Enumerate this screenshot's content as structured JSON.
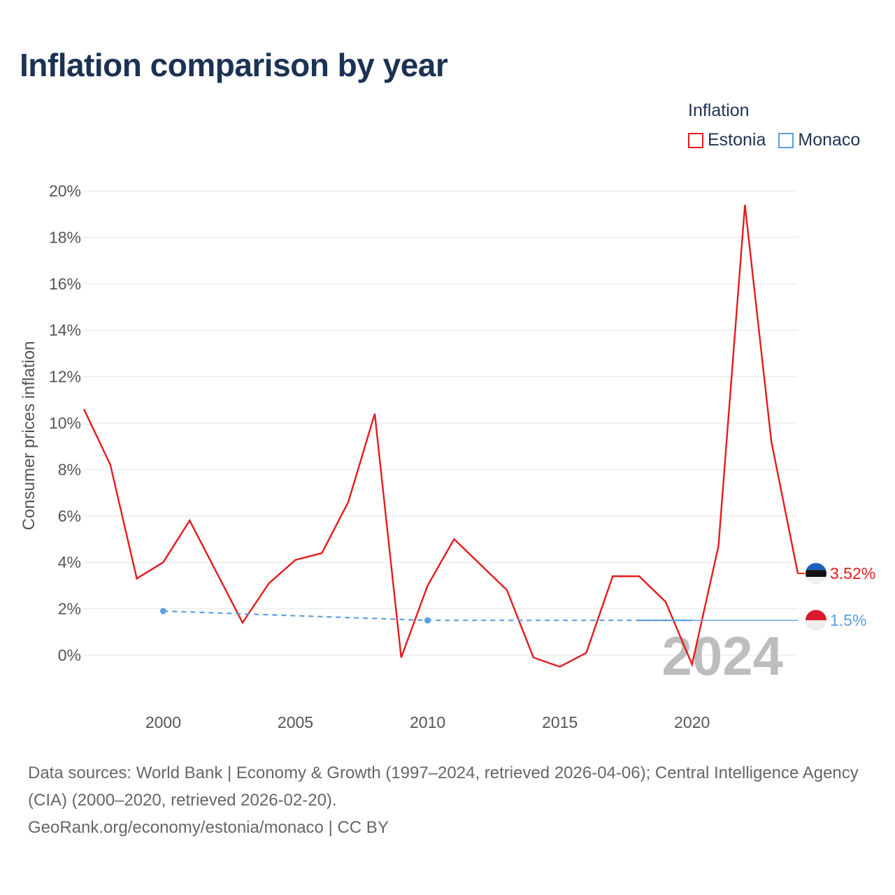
{
  "title": "Inflation comparison by year",
  "legend": {
    "title": "Inflation",
    "items": [
      {
        "label": "Estonia",
        "color": "#e41a1c"
      },
      {
        "label": "Monaco",
        "color": "#5b9fe0"
      }
    ]
  },
  "watermark_year": "2024",
  "sources": {
    "line1": "Data sources: World Bank | Economy & Growth (1997–2024, retrieved 2026-04-06); Central Intelligence Agency (CIA) (2000–2020, retrieved 2026-02-20).",
    "line2": "GeoRank.org/economy/estonia/monaco | CC BY"
  },
  "chart_data": {
    "type": "line",
    "title": "Inflation comparison by year",
    "xlabel": "",
    "ylabel": "Consumer prices inflation",
    "xlim": [
      1997,
      2024
    ],
    "ylim": [
      0,
      20
    ],
    "y_ticks": [
      0,
      2,
      4,
      6,
      8,
      10,
      12,
      14,
      16,
      18,
      20
    ],
    "y_tick_labels": [
      "0%",
      "2%",
      "4%",
      "6%",
      "8%",
      "10%",
      "12%",
      "14%",
      "16%",
      "18%",
      "20%"
    ],
    "x_ticks": [
      2000,
      2005,
      2010,
      2015,
      2020
    ],
    "x_tick_labels": [
      "2000",
      "2005",
      "2010",
      "2015",
      "2020"
    ],
    "grid": true,
    "series": [
      {
        "name": "Estonia",
        "color": "#e41a1c",
        "style": "solid",
        "x": [
          1997,
          1998,
          1999,
          2000,
          2001,
          2002,
          2003,
          2004,
          2005,
          2006,
          2007,
          2008,
          2009,
          2010,
          2011,
          2012,
          2013,
          2014,
          2015,
          2016,
          2017,
          2018,
          2019,
          2020,
          2021,
          2022,
          2023,
          2024
        ],
        "values": [
          10.6,
          8.2,
          3.3,
          4.0,
          5.8,
          3.6,
          1.4,
          3.1,
          4.1,
          4.4,
          6.6,
          10.4,
          -0.1,
          3.0,
          5.0,
          3.9,
          2.8,
          -0.1,
          -0.5,
          0.1,
          3.4,
          3.4,
          2.3,
          -0.4,
          4.7,
          19.4,
          9.2,
          3.52
        ],
        "end_label": "3.52%"
      },
      {
        "name": "Monaco",
        "color": "#5b9fe0",
        "style": "dashed",
        "x": [
          2000,
          2010,
          2020
        ],
        "values": [
          1.9,
          1.5,
          1.5
        ],
        "markers": [
          2000,
          2010
        ],
        "extended_to": 2024,
        "end_label": "1.5%"
      }
    ]
  }
}
